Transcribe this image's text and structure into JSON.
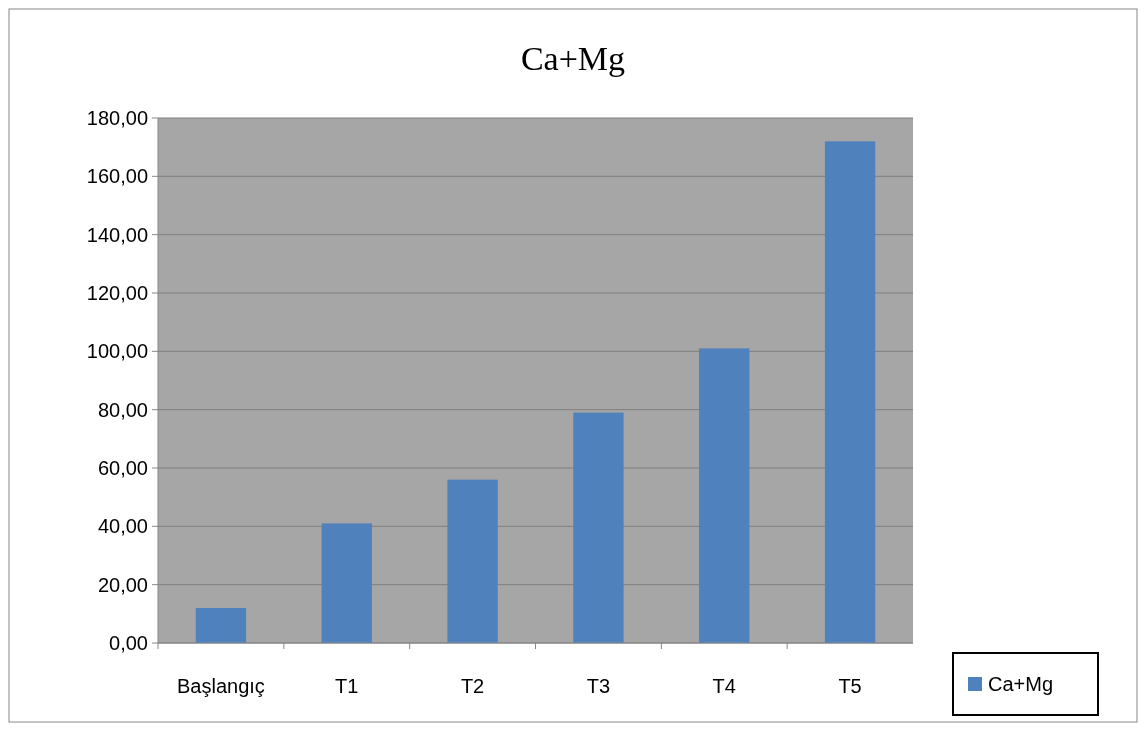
{
  "chart_data": {
    "type": "bar",
    "title": "Ca+Mg",
    "categories": [
      "Başlangıç",
      "T1",
      "T2",
      "T3",
      "T4",
      "T5"
    ],
    "series": [
      {
        "name": "Ca+Mg",
        "color": "#4f81bd",
        "values": [
          12,
          41,
          56,
          79,
          101,
          172
        ]
      }
    ],
    "ylim": [
      0,
      180
    ],
    "yticks": [
      {
        "value": 0,
        "label": "0,00"
      },
      {
        "value": 20,
        "label": "20,00"
      },
      {
        "value": 40,
        "label": "40,00"
      },
      {
        "value": 60,
        "label": "60,00"
      },
      {
        "value": 80,
        "label": "80,00"
      },
      {
        "value": 100,
        "label": "100,00"
      },
      {
        "value": 120,
        "label": "120,00"
      },
      {
        "value": 140,
        "label": "140,00"
      },
      {
        "value": 160,
        "label": "160,00"
      },
      {
        "value": 180,
        "label": "180,00"
      }
    ],
    "grid": "y",
    "legend": "right"
  }
}
